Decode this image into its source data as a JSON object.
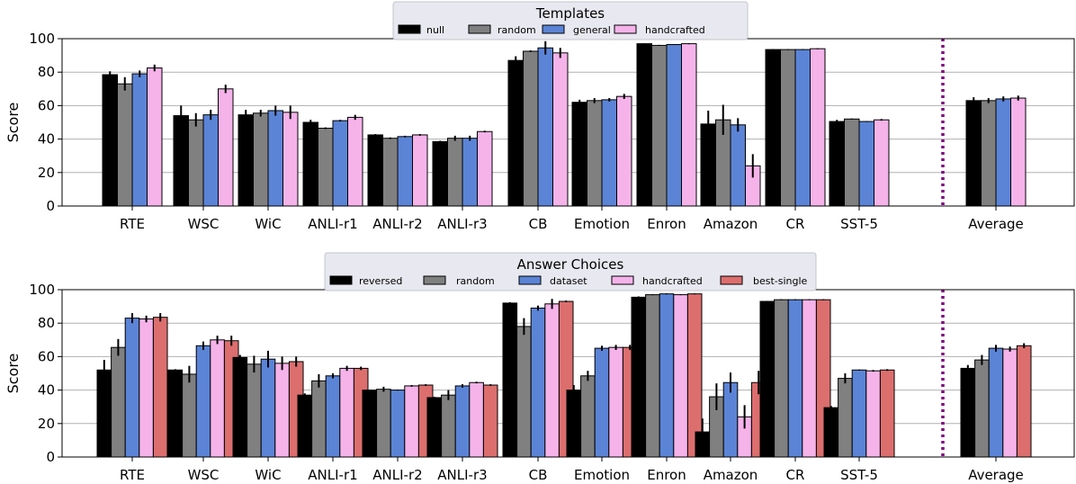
{
  "chart_data": [
    {
      "type": "bar",
      "legend_title": "Templates",
      "ylabel": "Score",
      "ylim": [
        0,
        100
      ],
      "yticks": [
        0,
        20,
        40,
        60,
        80,
        100
      ],
      "grid": "horizontal",
      "legend_position": "top-center",
      "categories": [
        "RTE",
        "WSC",
        "WiC",
        "ANLI-r1",
        "ANLI-r2",
        "ANLI-r3",
        "CB",
        "Emotion",
        "Enron",
        "Amazon",
        "CR",
        "SST-5",
        "Average"
      ],
      "series": [
        {
          "name": "null",
          "color": "#000000",
          "values": [
            78.5,
            54,
            54.5,
            50,
            42.5,
            38.5,
            87,
            62,
            97,
            49,
            93.5,
            50.5,
            63
          ],
          "errors": [
            2,
            6,
            3,
            1.5,
            0.5,
            0.5,
            2.5,
            1.5,
            0.3,
            8,
            0.3,
            1,
            2
          ]
        },
        {
          "name": "random",
          "color": "#808080",
          "values": [
            73,
            51.5,
            55.5,
            46.5,
            40.5,
            40.5,
            92.5,
            63,
            96,
            51.5,
            93.5,
            52,
            63
          ],
          "errors": [
            4,
            4,
            2,
            0.5,
            0.5,
            1.5,
            0.5,
            1.5,
            0.3,
            9,
            0.3,
            0.3,
            1.5
          ]
        },
        {
          "name": "general",
          "color": "#5b84d6",
          "values": [
            79,
            54.5,
            57,
            51,
            41.5,
            40.5,
            94.5,
            63.5,
            96.5,
            48.5,
            93.5,
            50.5,
            64
          ],
          "errors": [
            2,
            3,
            3,
            0.5,
            0.5,
            1.5,
            4,
            1,
            0.3,
            4,
            0.3,
            0.3,
            1.5
          ]
        },
        {
          "name": "handcrafted",
          "color": "#f5b3ea",
          "values": [
            82.5,
            70,
            56,
            53,
            42.5,
            44.5,
            91.5,
            65.5,
            97,
            24,
            94,
            51.5,
            64.5
          ],
          "errors": [
            2,
            2.5,
            4,
            1.5,
            0.5,
            0.5,
            3,
            1.5,
            0.3,
            7,
            0.3,
            0.5,
            1.5
          ]
        }
      ]
    },
    {
      "type": "bar",
      "legend_title": "Answer Choices",
      "ylabel": "Score",
      "ylim": [
        0,
        100
      ],
      "yticks": [
        0,
        20,
        40,
        60,
        80,
        100
      ],
      "grid": "horizontal",
      "legend_position": "top-center",
      "categories": [
        "RTE",
        "WSC",
        "WiC",
        "ANLI-r1",
        "ANLI-r2",
        "ANLI-r3",
        "CB",
        "Emotion",
        "Enron",
        "Amazon",
        "CR",
        "SST-5",
        "Average"
      ],
      "series": [
        {
          "name": "reversed",
          "color": "#000000",
          "values": [
            52,
            52,
            59.5,
            37,
            40,
            35.5,
            92,
            40,
            95.5,
            15,
            93,
            29.5,
            53
          ],
          "errors": [
            6,
            0.5,
            1.5,
            1,
            0.3,
            0.5,
            0.5,
            3,
            0.5,
            8,
            0.3,
            1,
            2
          ]
        },
        {
          "name": "random",
          "color": "#808080",
          "values": [
            65.5,
            49.5,
            55.5,
            45.5,
            40.5,
            37,
            78,
            48.5,
            97,
            36,
            94,
            47,
            58
          ],
          "errors": [
            5,
            5,
            5,
            4,
            1.5,
            3,
            5,
            3,
            0.3,
            8,
            0.3,
            3,
            3
          ]
        },
        {
          "name": "dataset",
          "color": "#5b84d6",
          "values": [
            83,
            66.5,
            58.5,
            48.5,
            40,
            42.5,
            89,
            65,
            97.5,
            44.5,
            94,
            52,
            65
          ],
          "errors": [
            3,
            2.5,
            5,
            1.5,
            0.3,
            1,
            1.5,
            1.5,
            0.3,
            6,
            0.3,
            0.3,
            2
          ]
        },
        {
          "name": "handcrafted",
          "color": "#f5b3ea",
          "values": [
            82.5,
            70,
            56,
            53,
            42.5,
            44.5,
            91.5,
            65.5,
            97,
            24,
            94,
            51.5,
            64.5
          ],
          "errors": [
            2,
            2.5,
            4,
            1.5,
            0.5,
            0.5,
            3,
            1.5,
            0.3,
            7,
            0.3,
            0.5,
            1.5
          ]
        },
        {
          "name": "best-single",
          "color": "#dc6e6e",
          "values": [
            83.5,
            69.5,
            57,
            53,
            43,
            43,
            93,
            65.5,
            97.5,
            44.5,
            94,
            52,
            66.5
          ],
          "errors": [
            2.5,
            3,
            3,
            1,
            0.5,
            0.5,
            0.5,
            1.5,
            0.3,
            7,
            0.3,
            0.5,
            1.5
          ]
        }
      ]
    }
  ]
}
